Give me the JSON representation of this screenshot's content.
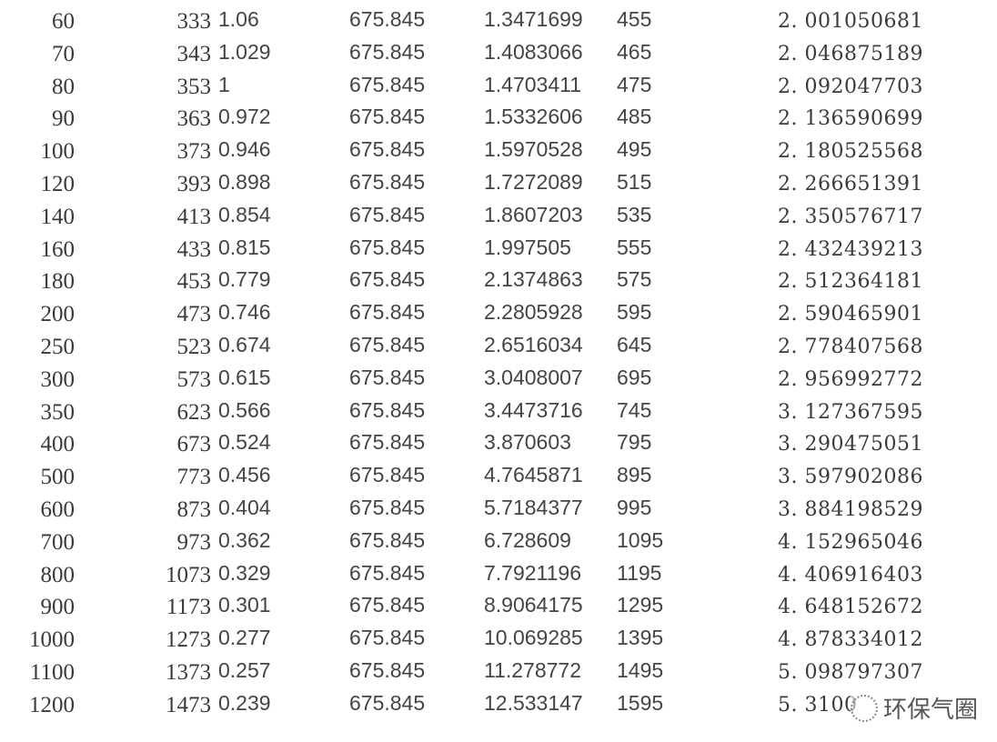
{
  "table": {
    "rows": [
      [
        "60",
        "333",
        "1.06",
        "675.845",
        "1.3471699",
        "455",
        "2. 001050681"
      ],
      [
        "70",
        "343",
        "1.029",
        "675.845",
        "1.4083066",
        "465",
        "2. 046875189"
      ],
      [
        "80",
        "353",
        "1",
        "675.845",
        "1.4703411",
        "475",
        "2. 092047703"
      ],
      [
        "90",
        "363",
        "0.972",
        "675.845",
        "1.5332606",
        "485",
        "2. 136590699"
      ],
      [
        "100",
        "373",
        "0.946",
        "675.845",
        "1.5970528",
        "495",
        "2. 180525568"
      ],
      [
        "120",
        "393",
        "0.898",
        "675.845",
        "1.7272089",
        "515",
        "2. 266651391"
      ],
      [
        "140",
        "413",
        "0.854",
        "675.845",
        "1.8607203",
        "535",
        "2. 350576717"
      ],
      [
        "160",
        "433",
        "0.815",
        "675.845",
        "1.997505",
        "555",
        "2. 432439213"
      ],
      [
        "180",
        "453",
        "0.779",
        "675.845",
        "2.1374863",
        "575",
        "2. 512364181"
      ],
      [
        "200",
        "473",
        "0.746",
        "675.845",
        "2.2805928",
        "595",
        "2. 590465901"
      ],
      [
        "250",
        "523",
        "0.674",
        "675.845",
        "2.6516034",
        "645",
        "2. 778407568"
      ],
      [
        "300",
        "573",
        "0.615",
        "675.845",
        "3.0408007",
        "695",
        "2. 956992772"
      ],
      [
        "350",
        "623",
        "0.566",
        "675.845",
        "3.4473716",
        "745",
        "3. 127367595"
      ],
      [
        "400",
        "673",
        "0.524",
        "675.845",
        "3.870603",
        "795",
        "3. 290475051"
      ],
      [
        "500",
        "773",
        "0.456",
        "675.845",
        "4.7645871",
        "895",
        "3. 597902086"
      ],
      [
        "600",
        "873",
        "0.404",
        "675.845",
        "5.7184377",
        "995",
        "3. 884198529"
      ],
      [
        "700",
        "973",
        "0.362",
        "675.845",
        "6.728609",
        "1095",
        "4. 152965046"
      ],
      [
        "800",
        "1073",
        "0.329",
        "675.845",
        "7.7921196",
        "1195",
        "4. 406916403"
      ],
      [
        "900",
        "1173",
        "0.301",
        "675.845",
        "8.9064175",
        "1295",
        "4. 648152672"
      ],
      [
        "1000",
        "1273",
        "0.277",
        "675.845",
        "10.069285",
        "1395",
        "4. 878334012"
      ],
      [
        "1100",
        "1373",
        "0.257",
        "675.845",
        "11.278772",
        "1495",
        "5. 098797307"
      ],
      [
        "1200",
        "1473",
        "0.239",
        "675.845",
        "12.533147",
        "1595",
        "5. 3100"
      ]
    ]
  },
  "watermark": {
    "text": "环保气圈",
    "icon": "wechat-icon"
  }
}
